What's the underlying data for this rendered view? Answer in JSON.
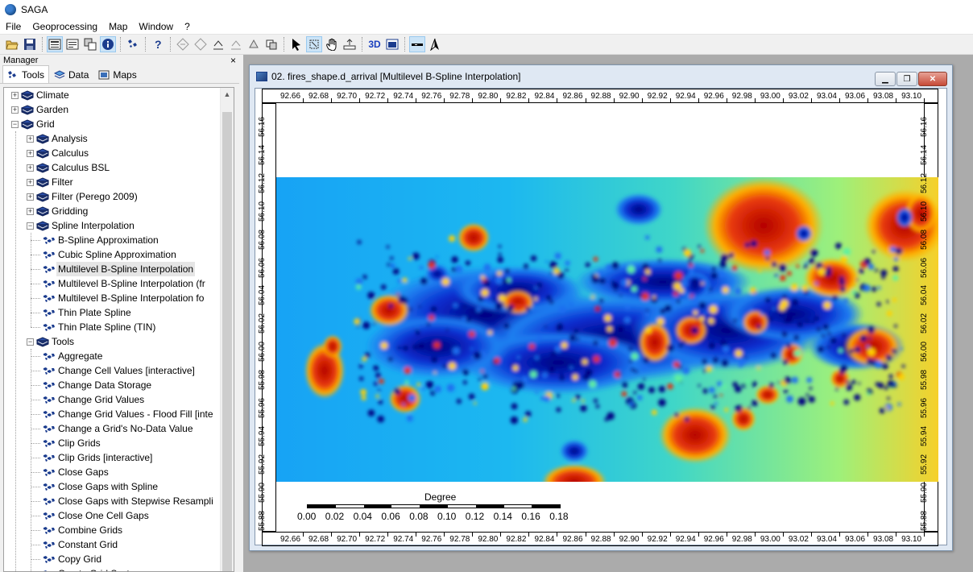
{
  "app": {
    "title": "SAGA"
  },
  "menu": [
    "File",
    "Geoprocessing",
    "Map",
    "Window",
    "?"
  ],
  "manager": {
    "title": "Manager",
    "close": "×",
    "tabs": [
      "Tools",
      "Data",
      "Maps"
    ],
    "tree": [
      {
        "level": 0,
        "type": "library",
        "expander": "+",
        "label": "Climate"
      },
      {
        "level": 0,
        "type": "library",
        "expander": "+",
        "label": "Garden"
      },
      {
        "level": 0,
        "type": "library",
        "expander": "−",
        "label": "Grid"
      },
      {
        "level": 1,
        "type": "library",
        "expander": "+",
        "label": "Analysis"
      },
      {
        "level": 1,
        "type": "library",
        "expander": "+",
        "label": "Calculus"
      },
      {
        "level": 1,
        "type": "library",
        "expander": "+",
        "label": "Calculus BSL"
      },
      {
        "level": 1,
        "type": "library",
        "expander": "+",
        "label": "Filter"
      },
      {
        "level": 1,
        "type": "library",
        "expander": "+",
        "label": "Filter (Perego 2009)"
      },
      {
        "level": 1,
        "type": "library",
        "expander": "+",
        "label": "Gridding"
      },
      {
        "level": 1,
        "type": "library",
        "expander": "−",
        "label": "Spline Interpolation"
      },
      {
        "level": 2,
        "type": "tool",
        "label": "B-Spline Approximation"
      },
      {
        "level": 2,
        "type": "tool",
        "label": "Cubic Spline Approximation"
      },
      {
        "level": 2,
        "type": "tool",
        "label": "Multilevel B-Spline Interpolation",
        "selected": true
      },
      {
        "level": 2,
        "type": "tool",
        "label": "Multilevel B-Spline Interpolation (fr"
      },
      {
        "level": 2,
        "type": "tool",
        "label": "Multilevel B-Spline Interpolation fo"
      },
      {
        "level": 2,
        "type": "tool",
        "label": "Thin Plate Spline"
      },
      {
        "level": 2,
        "type": "tool",
        "label": "Thin Plate Spline (TIN)"
      },
      {
        "level": 1,
        "type": "library",
        "expander": "−",
        "label": "Tools"
      },
      {
        "level": 2,
        "type": "tool",
        "label": "Aggregate"
      },
      {
        "level": 2,
        "type": "tool",
        "label": "Change Cell Values [interactive]"
      },
      {
        "level": 2,
        "type": "tool",
        "label": "Change Data Storage"
      },
      {
        "level": 2,
        "type": "tool",
        "label": "Change Grid Values"
      },
      {
        "level": 2,
        "type": "tool",
        "label": "Change Grid Values - Flood Fill [inte"
      },
      {
        "level": 2,
        "type": "tool",
        "label": "Change a Grid's No-Data Value"
      },
      {
        "level": 2,
        "type": "tool",
        "label": "Clip Grids"
      },
      {
        "level": 2,
        "type": "tool",
        "label": "Clip Grids [interactive]"
      },
      {
        "level": 2,
        "type": "tool",
        "label": "Close Gaps"
      },
      {
        "level": 2,
        "type": "tool",
        "label": "Close Gaps with Spline"
      },
      {
        "level": 2,
        "type": "tool",
        "label": "Close Gaps with Stepwise Resampli"
      },
      {
        "level": 2,
        "type": "tool",
        "label": "Close One Cell Gaps"
      },
      {
        "level": 2,
        "type": "tool",
        "label": "Combine Grids"
      },
      {
        "level": 2,
        "type": "tool",
        "label": "Constant Grid"
      },
      {
        "level": 2,
        "type": "tool",
        "label": "Copy Grid"
      },
      {
        "level": 2,
        "type": "tool",
        "label": "Create Grid Syst"
      }
    ]
  },
  "toolbar": {
    "icons": [
      "open-icon",
      "save-icon",
      "workspace-icon",
      "data-source-icon",
      "active-tool-icon",
      "info-icon",
      "tools-icon",
      "help-icon",
      "zoom-full-icon",
      "zoom-previous-icon",
      "zoom-next-icon",
      "zoom-active-icon",
      "zoom-selection-icon",
      "zoom-extent-icon",
      "select-icon",
      "zoom-icon",
      "pan-icon",
      "zoom-zoom-icon",
      "3d-view-icon",
      "layout-icon",
      "scale-bar-icon",
      "north-arrow-icon"
    ],
    "label_3d": "3D"
  },
  "map_window": {
    "title": "02. fires_shape.d_arrival [Multilevel B-Spline Interpolation]",
    "buttons": {
      "minimize": "▁",
      "restore": "❐",
      "close": "✕"
    },
    "x_ticks": [
      "92.66",
      "92.68",
      "92.70",
      "92.72",
      "92.74",
      "92.76",
      "92.78",
      "92.80",
      "92.82",
      "92.84",
      "92.86",
      "92.88",
      "92.90",
      "92.92",
      "92.94",
      "92.96",
      "92.98",
      "93.00",
      "93.02",
      "93.04",
      "93.06",
      "93.08",
      "93.10"
    ],
    "y_ticks": [
      "56.16",
      "56.14",
      "56.12",
      "56.10",
      "56.08",
      "56.06",
      "56.04",
      "56.02",
      "56.00",
      "55.98",
      "55.96",
      "55.94",
      "55.92",
      "55.90",
      "55.88"
    ],
    "scale_bar": {
      "title": "Degree",
      "labels": [
        "0.00",
        "0.02",
        "0.04",
        "0.06",
        "0.08",
        "0.10",
        "0.12",
        "0.14",
        "0.16",
        "0.18"
      ]
    },
    "colors": {
      "low": "#00007f",
      "mid": "#7fff7f",
      "high": "#7f0000",
      "frame": "#dfe8f3"
    }
  }
}
